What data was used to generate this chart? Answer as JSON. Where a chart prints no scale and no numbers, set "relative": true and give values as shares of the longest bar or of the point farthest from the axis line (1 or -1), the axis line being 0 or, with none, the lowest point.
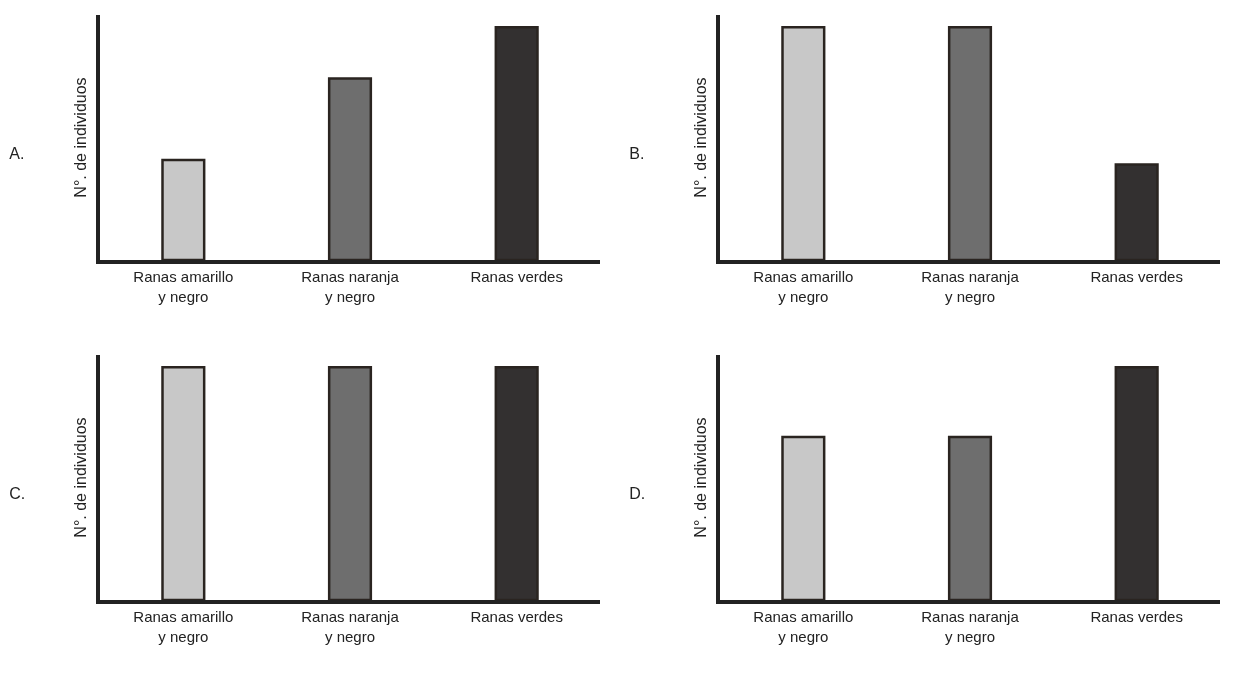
{
  "chart_data": [
    {
      "type": "bar",
      "title": "A.",
      "ylabel": "N°. de individuos",
      "categories": [
        "Ranas amarillo\ny negro",
        "Ranas naranja\ny negro",
        "Ranas verdes"
      ],
      "values": [
        0.43,
        0.78,
        1
      ],
      "colors": [
        "#c8c8c8",
        "#6e6e6e",
        "#333030"
      ],
      "relative": true
    },
    {
      "type": "bar",
      "title": "B.",
      "ylabel": "N°. de individuos",
      "categories": [
        "Ranas amarillo\ny negro",
        "Ranas naranja\ny negro",
        "Ranas verdes"
      ],
      "values": [
        1,
        1,
        0.41
      ],
      "colors": [
        "#c8c8c8",
        "#6e6e6e",
        "#333030"
      ],
      "relative": true
    },
    {
      "type": "bar",
      "title": "C.",
      "ylabel": "N°. de individuos",
      "categories": [
        "Ranas amarillo\ny negro",
        "Ranas naranja\ny negro",
        "Ranas verdes"
      ],
      "values": [
        1,
        1,
        1
      ],
      "colors": [
        "#c8c8c8",
        "#6e6e6e",
        "#333030"
      ],
      "relative": true
    },
    {
      "type": "bar",
      "title": "D.",
      "ylabel": "N°. de individuos",
      "categories": [
        "Ranas amarillo\ny negro",
        "Ranas naranja\ny negro",
        "Ranas verdes"
      ],
      "values": [
        0.7,
        0.7,
        1
      ],
      "colors": [
        "#c8c8c8",
        "#6e6e6e",
        "#333030"
      ],
      "relative": true
    }
  ]
}
